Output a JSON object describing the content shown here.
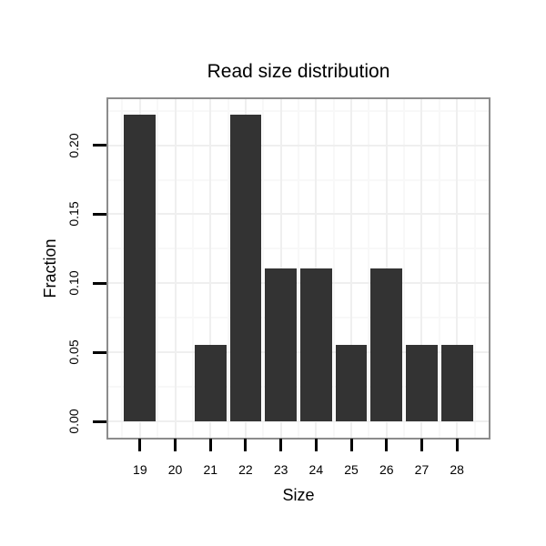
{
  "chart_data": {
    "type": "bar",
    "title": "Read size distribution",
    "xlabel": "Size",
    "ylabel": "Fraction",
    "categories": [
      19,
      20,
      21,
      22,
      23,
      24,
      25,
      26,
      27,
      28
    ],
    "values": [
      0.2222,
      0,
      0.0556,
      0.2222,
      0.1111,
      0.1111,
      0.0556,
      0.1111,
      0.0556,
      0.0556
    ],
    "x_tick_labels": [
      "19",
      "20",
      "21",
      "22",
      "23",
      "24",
      "25",
      "26",
      "27",
      "28"
    ],
    "y_ticks": [
      0,
      0.05,
      0.1,
      0.15,
      0.2
    ],
    "y_tick_labels": [
      "0.00",
      "0.05",
      "0.10",
      "0.15",
      "0.20"
    ],
    "xlim": [
      18.1,
      28.9
    ],
    "ylim": [
      -0.0117,
      0.2333
    ],
    "bar_width_units": 0.9,
    "grid": "major+minor",
    "legend": "none",
    "colors": {
      "bar": "#333333",
      "panel_border": "#8c8c8c",
      "grid_major": "#efefef",
      "grid_minor": "#f8f8f8",
      "tick": "#000000",
      "text": "#000000",
      "background": "#ffffff"
    }
  }
}
